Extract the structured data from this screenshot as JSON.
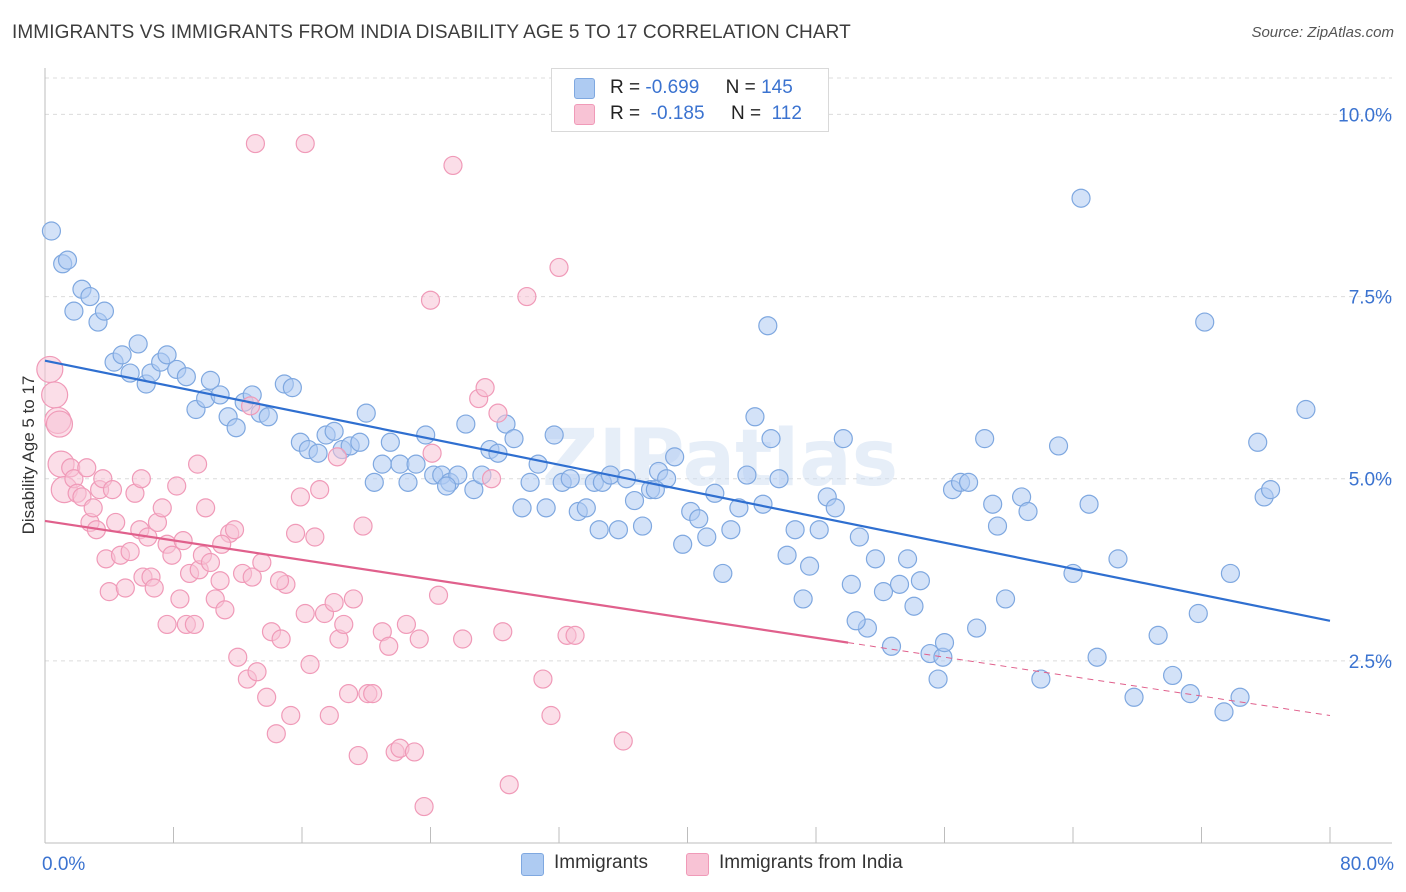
{
  "title": "IMMIGRANTS VS IMMIGRANTS FROM INDIA DISABILITY AGE 5 TO 17 CORRELATION CHART",
  "source": "Source: ZipAtlas.com",
  "watermark": "ZIPatlas",
  "legend": {
    "rows": [
      {
        "r_label": "R =",
        "r_value": "-0.699",
        "n_label": "N =",
        "n_value": "145",
        "color": "#7fa8e0",
        "fill": "#aecbf2"
      },
      {
        "r_label": "R =",
        "r_value": "-0.185",
        "n_label": "N =",
        "n_value": "112",
        "color": "#f09ab8",
        "fill": "#f8c3d5"
      }
    ],
    "bottom": [
      {
        "label": "Immigrants",
        "color": "#aecbf2",
        "border": "#7fa8e0"
      },
      {
        "label": "Immigrants from India",
        "color": "#f8c3d5",
        "border": "#f09ab8"
      }
    ]
  },
  "chart_data": {
    "type": "scatter",
    "title": "IMMIGRANTS VS IMMIGRANTS FROM INDIA DISABILITY AGE 5 TO 17 CORRELATION CHART",
    "xlabel": "",
    "ylabel": "Disability Age 5 to 17",
    "xlim": [
      0,
      80
    ],
    "ylim": [
      0,
      10.5
    ],
    "x_tick_labels": [
      "0.0%",
      "80.0%"
    ],
    "y_ticks": [
      2.5,
      5.0,
      7.5,
      10.0
    ],
    "y_tick_labels": [
      "2.5%",
      "5.0%",
      "7.5%",
      "10.0%"
    ],
    "grid": true,
    "series": [
      {
        "name": "Immigrants",
        "color": "#7fa8e0",
        "fill": "#aecbf2",
        "trend_color": "#2f6fd0",
        "trend": {
          "x0": 0,
          "y0": 6.62,
          "x1": 80,
          "y1": 3.05
        },
        "points": [
          [
            0.4,
            8.4
          ],
          [
            1.1,
            7.95
          ],
          [
            1.4,
            8.0
          ],
          [
            1.8,
            7.3
          ],
          [
            2.3,
            7.6
          ],
          [
            2.8,
            7.5
          ],
          [
            3.3,
            7.15
          ],
          [
            3.7,
            7.3
          ],
          [
            4.3,
            6.6
          ],
          [
            4.8,
            6.7
          ],
          [
            5.3,
            6.45
          ],
          [
            5.8,
            6.85
          ],
          [
            6.3,
            6.3
          ],
          [
            6.6,
            6.45
          ],
          [
            7.2,
            6.6
          ],
          [
            7.6,
            6.7
          ],
          [
            8.2,
            6.5
          ],
          [
            8.8,
            6.4
          ],
          [
            9.4,
            5.95
          ],
          [
            10.0,
            6.1
          ],
          [
            10.3,
            6.35
          ],
          [
            10.9,
            6.15
          ],
          [
            11.4,
            5.85
          ],
          [
            11.9,
            5.7
          ],
          [
            12.4,
            6.05
          ],
          [
            12.9,
            6.15
          ],
          [
            13.4,
            5.9
          ],
          [
            13.9,
            5.85
          ],
          [
            14.9,
            6.3
          ],
          [
            15.4,
            6.25
          ],
          [
            15.9,
            5.5
          ],
          [
            16.4,
            5.4
          ],
          [
            17.0,
            5.35
          ],
          [
            17.5,
            5.6
          ],
          [
            18.0,
            5.65
          ],
          [
            18.5,
            5.4
          ],
          [
            19.0,
            5.45
          ],
          [
            19.6,
            5.5
          ],
          [
            20.0,
            5.9
          ],
          [
            20.5,
            4.95
          ],
          [
            21.0,
            5.2
          ],
          [
            21.5,
            5.5
          ],
          [
            22.1,
            5.2
          ],
          [
            22.6,
            4.95
          ],
          [
            23.1,
            5.2
          ],
          [
            23.7,
            5.6
          ],
          [
            24.2,
            5.05
          ],
          [
            24.7,
            5.05
          ],
          [
            25.2,
            4.95
          ],
          [
            25.7,
            5.05
          ],
          [
            26.2,
            5.75
          ],
          [
            26.7,
            4.85
          ],
          [
            27.2,
            5.05
          ],
          [
            27.7,
            5.4
          ],
          [
            28.2,
            5.35
          ],
          [
            28.7,
            5.75
          ],
          [
            29.2,
            5.55
          ],
          [
            29.7,
            4.6
          ],
          [
            30.2,
            4.95
          ],
          [
            30.7,
            5.2
          ],
          [
            31.2,
            4.6
          ],
          [
            31.7,
            5.6
          ],
          [
            32.2,
            4.95
          ],
          [
            32.7,
            5.0
          ],
          [
            33.2,
            4.55
          ],
          [
            33.7,
            4.6
          ],
          [
            34.2,
            4.95
          ],
          [
            34.7,
            4.95
          ],
          [
            35.2,
            5.05
          ],
          [
            35.7,
            4.3
          ],
          [
            36.2,
            5.0
          ],
          [
            36.7,
            4.7
          ],
          [
            37.2,
            4.35
          ],
          [
            37.7,
            4.85
          ],
          [
            38.2,
            5.1
          ],
          [
            38.7,
            5.0
          ],
          [
            39.2,
            5.3
          ],
          [
            39.7,
            4.1
          ],
          [
            40.2,
            4.55
          ],
          [
            40.7,
            4.45
          ],
          [
            41.2,
            4.2
          ],
          [
            41.7,
            4.8
          ],
          [
            42.2,
            3.7
          ],
          [
            42.7,
            4.3
          ],
          [
            43.2,
            4.6
          ],
          [
            43.7,
            5.05
          ],
          [
            44.2,
            5.85
          ],
          [
            44.7,
            4.65
          ],
          [
            45.2,
            5.55
          ],
          [
            45.7,
            5.0
          ],
          [
            46.2,
            3.95
          ],
          [
            46.7,
            4.3
          ],
          [
            47.2,
            3.35
          ],
          [
            47.6,
            3.8
          ],
          [
            48.2,
            4.3
          ],
          [
            48.7,
            4.75
          ],
          [
            49.2,
            4.6
          ],
          [
            49.7,
            5.55
          ],
          [
            50.2,
            3.55
          ],
          [
            50.7,
            4.2
          ],
          [
            51.2,
            2.95
          ],
          [
            51.7,
            3.9
          ],
          [
            52.2,
            3.45
          ],
          [
            52.7,
            2.7
          ],
          [
            53.2,
            3.55
          ],
          [
            53.7,
            3.9
          ],
          [
            54.1,
            3.25
          ],
          [
            54.5,
            3.6
          ],
          [
            55.1,
            2.6
          ],
          [
            55.6,
            2.25
          ],
          [
            55.9,
            2.55
          ],
          [
            56.5,
            4.85
          ],
          [
            57.0,
            4.95
          ],
          [
            57.5,
            4.95
          ],
          [
            58.0,
            2.95
          ],
          [
            58.5,
            5.55
          ],
          [
            59.0,
            4.65
          ],
          [
            59.3,
            4.35
          ],
          [
            59.8,
            3.35
          ],
          [
            60.8,
            4.75
          ],
          [
            61.2,
            4.55
          ],
          [
            62.0,
            2.25
          ],
          [
            63.1,
            5.45
          ],
          [
            64.0,
            3.7
          ],
          [
            64.5,
            8.85
          ],
          [
            65.0,
            4.65
          ],
          [
            65.5,
            2.55
          ],
          [
            66.8,
            3.9
          ],
          [
            67.8,
            2.0
          ],
          [
            69.3,
            2.85
          ],
          [
            70.2,
            2.3
          ],
          [
            71.3,
            2.05
          ],
          [
            71.8,
            3.15
          ],
          [
            72.2,
            7.15
          ],
          [
            73.4,
            1.8
          ],
          [
            73.8,
            3.7
          ],
          [
            74.4,
            2.0
          ],
          [
            75.5,
            5.5
          ],
          [
            75.9,
            4.75
          ],
          [
            76.3,
            4.85
          ],
          [
            78.5,
            5.95
          ],
          [
            50.5,
            3.05
          ],
          [
            45.0,
            7.1
          ],
          [
            56.0,
            2.75
          ],
          [
            34.5,
            4.3
          ],
          [
            38.0,
            4.85
          ],
          [
            25.0,
            4.9
          ]
        ]
      },
      {
        "name": "Immigrants from India",
        "color": "#f09ab8",
        "fill": "#f8c3d5",
        "trend_color": "#e0608c",
        "trend": {
          "x0": 0,
          "y0": 4.42,
          "x1": 50,
          "y1": 2.75
        },
        "trend_dashed_to": {
          "x": 80,
          "y": 1.75
        },
        "points": [
          [
            0.3,
            6.5
          ],
          [
            0.6,
            6.15
          ],
          [
            0.8,
            5.8
          ],
          [
            0.9,
            5.75
          ],
          [
            1.0,
            5.2
          ],
          [
            1.2,
            4.85
          ],
          [
            1.6,
            5.15
          ],
          [
            1.8,
            5.0
          ],
          [
            2.0,
            4.8
          ],
          [
            2.3,
            4.75
          ],
          [
            2.6,
            5.15
          ],
          [
            2.8,
            4.4
          ],
          [
            3.0,
            4.6
          ],
          [
            3.2,
            4.3
          ],
          [
            3.4,
            4.85
          ],
          [
            3.6,
            5.0
          ],
          [
            3.8,
            3.9
          ],
          [
            4.0,
            3.45
          ],
          [
            4.2,
            4.85
          ],
          [
            4.4,
            4.4
          ],
          [
            4.7,
            3.95
          ],
          [
            5.0,
            3.5
          ],
          [
            5.3,
            4.0
          ],
          [
            5.6,
            4.8
          ],
          [
            5.9,
            4.3
          ],
          [
            6.1,
            3.65
          ],
          [
            6.4,
            4.2
          ],
          [
            6.6,
            3.65
          ],
          [
            6.8,
            3.5
          ],
          [
            7.0,
            4.4
          ],
          [
            7.3,
            4.6
          ],
          [
            7.6,
            4.1
          ],
          [
            7.9,
            3.95
          ],
          [
            8.2,
            4.9
          ],
          [
            8.4,
            3.35
          ],
          [
            8.6,
            4.15
          ],
          [
            8.8,
            3.0
          ],
          [
            9.0,
            3.7
          ],
          [
            9.3,
            3.0
          ],
          [
            9.6,
            3.75
          ],
          [
            9.8,
            3.95
          ],
          [
            10.0,
            4.6
          ],
          [
            10.3,
            3.85
          ],
          [
            10.6,
            3.35
          ],
          [
            10.9,
            3.6
          ],
          [
            11.2,
            3.2
          ],
          [
            11.5,
            4.25
          ],
          [
            11.8,
            4.3
          ],
          [
            12.0,
            2.55
          ],
          [
            12.3,
            3.7
          ],
          [
            12.6,
            2.25
          ],
          [
            12.9,
            3.65
          ],
          [
            13.2,
            2.35
          ],
          [
            13.5,
            3.85
          ],
          [
            13.8,
            2.0
          ],
          [
            14.1,
            2.9
          ],
          [
            14.4,
            1.5
          ],
          [
            14.7,
            2.8
          ],
          [
            15.0,
            3.55
          ],
          [
            15.3,
            1.75
          ],
          [
            15.6,
            4.25
          ],
          [
            15.9,
            4.75
          ],
          [
            16.2,
            3.15
          ],
          [
            16.5,
            2.45
          ],
          [
            16.8,
            4.2
          ],
          [
            17.1,
            4.85
          ],
          [
            17.4,
            3.15
          ],
          [
            17.7,
            1.75
          ],
          [
            18.0,
            3.3
          ],
          [
            18.3,
            2.8
          ],
          [
            18.6,
            3.0
          ],
          [
            18.9,
            2.05
          ],
          [
            19.2,
            3.35
          ],
          [
            19.5,
            1.2
          ],
          [
            19.8,
            4.35
          ],
          [
            20.1,
            2.05
          ],
          [
            20.4,
            2.05
          ],
          [
            21.0,
            2.9
          ],
          [
            21.4,
            2.7
          ],
          [
            21.8,
            1.25
          ],
          [
            22.1,
            1.3
          ],
          [
            22.5,
            3.0
          ],
          [
            23.0,
            1.25
          ],
          [
            23.3,
            2.8
          ],
          [
            23.6,
            0.5
          ],
          [
            24.1,
            5.35
          ],
          [
            24.5,
            3.4
          ],
          [
            25.4,
            9.3
          ],
          [
            26.0,
            2.8
          ],
          [
            27.0,
            6.1
          ],
          [
            27.4,
            6.25
          ],
          [
            27.8,
            5.0
          ],
          [
            28.2,
            5.9
          ],
          [
            28.5,
            2.9
          ],
          [
            28.9,
            0.8
          ],
          [
            30.0,
            7.5
          ],
          [
            31.0,
            2.25
          ],
          [
            31.5,
            1.75
          ],
          [
            32.0,
            7.9
          ],
          [
            32.5,
            2.85
          ],
          [
            33.0,
            2.85
          ],
          [
            13.1,
            9.6
          ],
          [
            16.2,
            9.6
          ],
          [
            24.0,
            7.45
          ],
          [
            36.0,
            1.4
          ],
          [
            11.0,
            4.1
          ],
          [
            6.0,
            5.0
          ],
          [
            9.5,
            5.2
          ],
          [
            7.6,
            3.0
          ],
          [
            12.8,
            6.0
          ],
          [
            14.6,
            3.6
          ],
          [
            18.2,
            5.3
          ]
        ]
      }
    ]
  }
}
